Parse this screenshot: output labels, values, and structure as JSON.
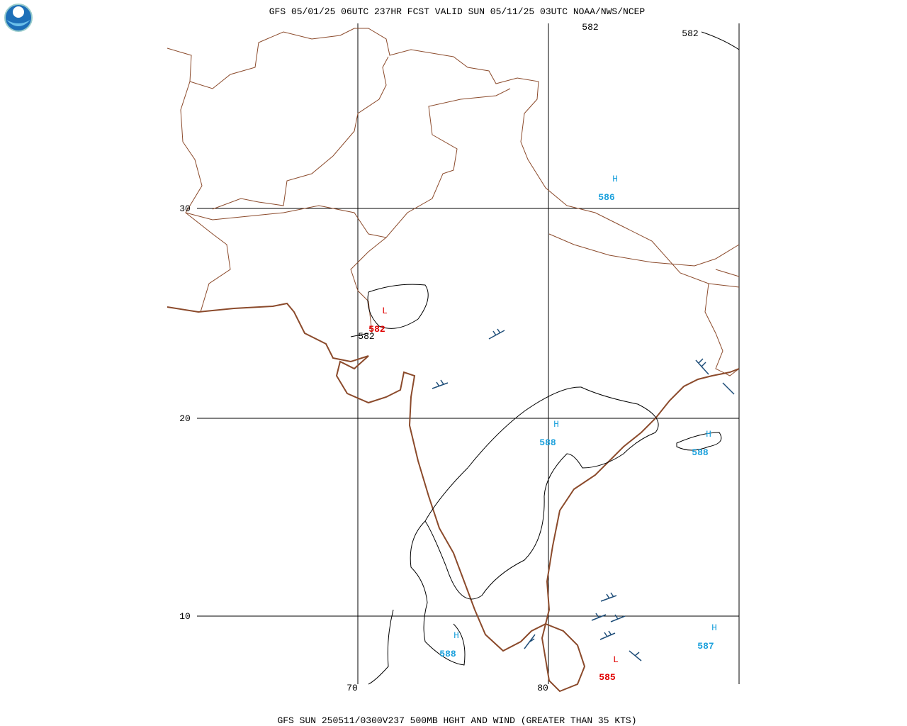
{
  "header": {
    "title": "GFS 05/01/25 06UTC 237HR FCST VALID SUN 05/11/25 03UTC NOAA/NWS/NCEP"
  },
  "footer": {
    "caption": "GFS SUN 250511/0300V237 500MB HGHT AND WIND (GREATER THAN 35 KTS)"
  },
  "map": {
    "latitude_labels": [
      "30",
      "20",
      "10"
    ],
    "longitude_labels": [
      "70",
      "80"
    ],
    "contour_labels": [
      "582",
      "582",
      "582"
    ],
    "centers": [
      {
        "kind": "H",
        "value": "586"
      },
      {
        "kind": "L",
        "value": "582"
      },
      {
        "kind": "H",
        "value": "588"
      },
      {
        "kind": "H",
        "value": "588"
      },
      {
        "kind": "H",
        "value": "587"
      },
      {
        "kind": "H",
        "value": "588"
      },
      {
        "kind": "L",
        "value": "585"
      }
    ]
  }
}
